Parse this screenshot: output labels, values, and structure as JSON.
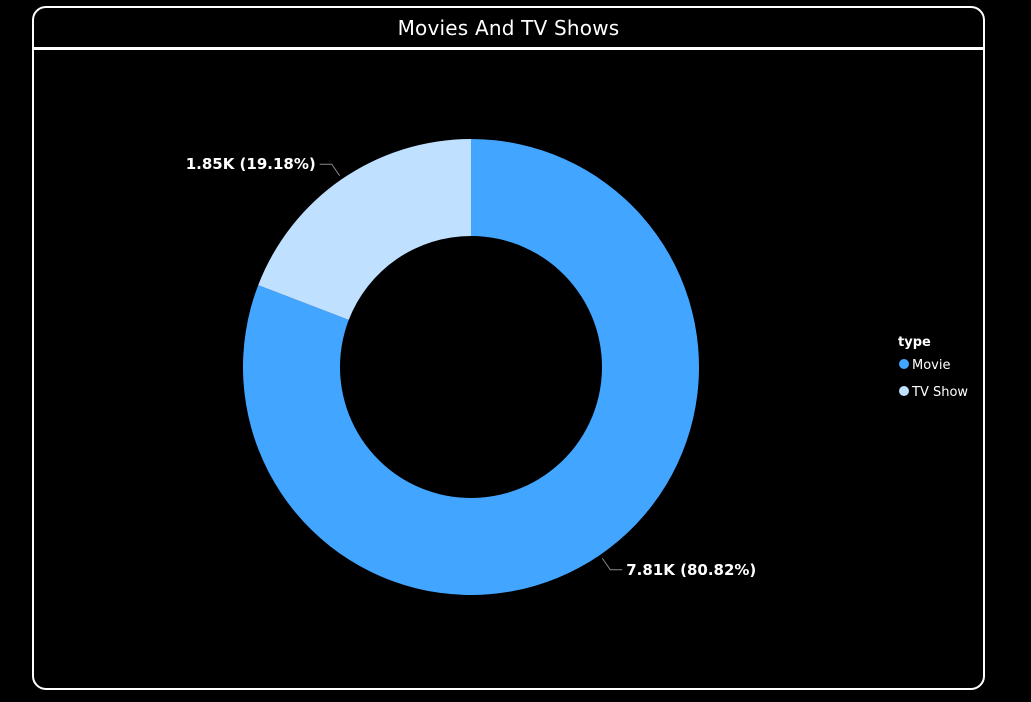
{
  "chart_data": {
    "type": "pie",
    "variant": "donut",
    "title": "Movies And TV Shows",
    "legend_title": "type",
    "legend_position": "right",
    "categories": [
      "Movie",
      "TV Show"
    ],
    "values": [
      7810,
      1850
    ],
    "percentages": [
      80.82,
      19.18
    ],
    "data_labels": [
      "7.81K (80.82%)",
      "1.85K (19.18%)"
    ],
    "colors": [
      "#42A5FF",
      "#BFE0FF"
    ]
  },
  "theme": {
    "background": "#000000",
    "border": "#ffffff",
    "text": "#ffffff"
  }
}
